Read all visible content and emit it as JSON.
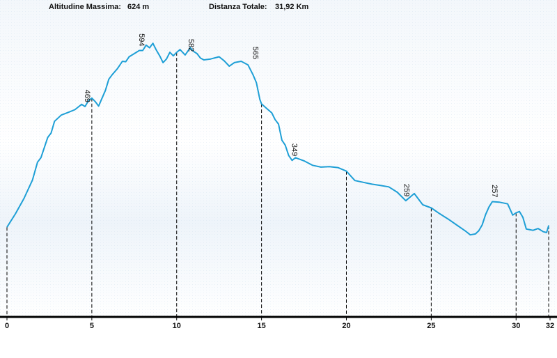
{
  "header": {
    "max_altitude_label": "Altitudine Massima:",
    "max_altitude_value": "624 m",
    "total_distance_label": "Distanza Totale:",
    "total_distance_value": "31,92 Km"
  },
  "colors": {
    "profile_line": "#1e9fd6",
    "axis": "#000000",
    "background_top": "#f3f7fb",
    "background_bottom": "#ffffff",
    "grid_dots": "#c9dbea"
  },
  "chart_data": {
    "type": "line",
    "title": "",
    "xlabel": "",
    "ylabel": "",
    "xlim": [
      0,
      32
    ],
    "ylim": [
      0,
      660
    ],
    "grid": false,
    "x_ticks": [
      0,
      5,
      10,
      15,
      20,
      25,
      30,
      32
    ],
    "series": [
      {
        "values_x": [
          0,
          0.5,
          1,
          1.5,
          1.8,
          2,
          2.4,
          2.6,
          2.8,
          3.2,
          3.6,
          4,
          4.2,
          4.4,
          4.6,
          4.8,
          5,
          5.2,
          5.4,
          5.8,
          6,
          6.2,
          6.5,
          6.8,
          7,
          7.2,
          7.5,
          7.8,
          8,
          8.2,
          8.4,
          8.6,
          8.8,
          9,
          9.2,
          9.4,
          9.6,
          9.8,
          10,
          10.2,
          10.5,
          10.8,
          11,
          11.2,
          11.4,
          11.6,
          12,
          12.5,
          12.8,
          13.1,
          13.4,
          13.8,
          14.2,
          14.5,
          14.7,
          14.9,
          15,
          15.3,
          15.6,
          15.8,
          16,
          16.2,
          16.4,
          16.6,
          16.8,
          17,
          17.5,
          18,
          18.5,
          19,
          19.5,
          20,
          20.5,
          21,
          21.5,
          22,
          22.5,
          23,
          23.5,
          24,
          24.5,
          25,
          25.5,
          26,
          26.5,
          27,
          27.3,
          27.6,
          27.8,
          28,
          28.2,
          28.4,
          28.6,
          29,
          29.5,
          29.8,
          30,
          30.2,
          30.4,
          30.6,
          31,
          31.3,
          31.6,
          31.8,
          31.92
        ],
        "values_y": [
          200,
          230,
          264,
          305,
          345,
          355,
          400,
          410,
          436,
          450,
          456,
          462,
          468,
          474,
          469,
          482,
          488,
          480,
          470,
          505,
          530,
          540,
          553,
          570,
          569,
          580,
          587,
          594,
          594,
          606,
          600,
          610,
          595,
          582,
          567,
          575,
          590,
          582,
          590,
          596,
          584,
          600,
          592,
          587,
          577,
          573,
          575,
          580,
          571,
          559,
          567,
          570,
          562,
          540,
          522,
          485,
          475,
          465,
          455,
          440,
          430,
          394,
          383,
          360,
          349,
          355,
          348,
          338,
          334,
          335,
          333,
          325,
          304,
          300,
          296,
          293,
          290,
          278,
          259,
          275,
          250,
          243,
          230,
          218,
          205,
          192,
          183,
          185,
          192,
          205,
          228,
          245,
          257,
          256,
          252,
          227,
          232,
          235,
          222,
          196,
          193,
          197,
          190,
          188,
          204
        ]
      }
    ],
    "annotations": [
      {
        "x": 4.6,
        "y": 469,
        "label": "469"
      },
      {
        "x": 7.8,
        "y": 594,
        "label": "594"
      },
      {
        "x": 10.7,
        "y": 582,
        "label": "582"
      },
      {
        "x": 14.5,
        "y": 565,
        "label": "565"
      },
      {
        "x": 16.8,
        "y": 349,
        "label": "349"
      },
      {
        "x": 23.4,
        "y": 259,
        "label": "259"
      },
      {
        "x": 28.6,
        "y": 257,
        "label": "257"
      }
    ],
    "markers_x": [
      0,
      5,
      10,
      15,
      20,
      25,
      30,
      31.92
    ]
  }
}
